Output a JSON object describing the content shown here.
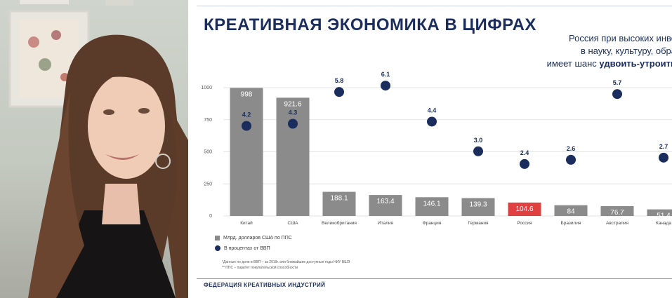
{
  "slide": {
    "title": "КРЕАТИВНАЯ ЭКОНОМИКА В ЦИФРАХ",
    "subtitle_line1": "Россия при высоких инве",
    "subtitle_line2": "в науку, культуру, обра",
    "subtitle_line3_normal": "имеет шанс ",
    "subtitle_line3_bold": "удвоить-утроить",
    "legend_bar": "Млрд. долларов США по ППС",
    "legend_dot": "В процентах от ВВП",
    "note1": "*Данные по доле в ВВП – за 2019г. или ближайшие доступные годы НИУ ВШЭ",
    "note2": "** ППС – паритет покупательской способности",
    "footer": "ФЕДЕРАЦИЯ КРЕАТИВНЫХ ИНДУСТРИЙ"
  },
  "colors": {
    "bar": "#8b8b8b",
    "highlight_bar": "#e04040",
    "dot": "#1a2d5c",
    "title": "#1a2d5c"
  },
  "chart_data": {
    "type": "bar",
    "categories": [
      "Китай",
      "США",
      "Великобритания",
      "Италия",
      "Франция",
      "Германия",
      "Россия",
      "Бразилия",
      "Австралия",
      "Канада"
    ],
    "ylim": [
      0,
      1000
    ],
    "yticks": [
      0,
      250,
      500,
      750,
      1000
    ],
    "grid": true,
    "highlight": "Россия",
    "series": [
      {
        "name": "Млрд. долларов США по ППС",
        "kind": "bar",
        "values": [
          998,
          921.6,
          188.1,
          163.4,
          146.1,
          139.3,
          104.6,
          84,
          76.7,
          51.4
        ],
        "labels": [
          "998",
          "921.6",
          "188.1",
          "163.4",
          "146.1",
          "139.3",
          "104.6",
          "84",
          "76.7",
          "51.4"
        ]
      },
      {
        "name": "В процентах от ВВП",
        "kind": "dot",
        "values": [
          4.2,
          4.3,
          5.8,
          6.1,
          4.4,
          3.0,
          2.4,
          2.6,
          5.7,
          2.7
        ],
        "labels": [
          "4.2",
          "4.3",
          "5.8",
          "6.1",
          "4.4",
          "3.0",
          "2.4",
          "2.6",
          "5.7",
          "2.7"
        ]
      }
    ]
  }
}
